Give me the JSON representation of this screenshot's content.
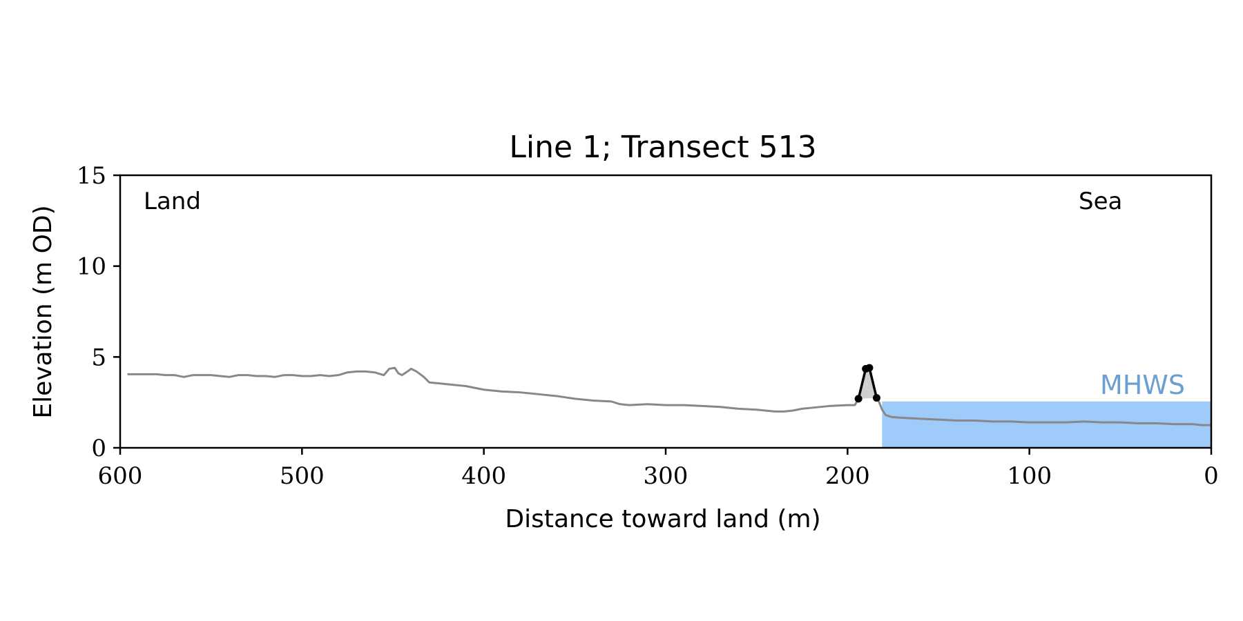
{
  "chart_data": {
    "type": "line",
    "title": "Line 1; Transect 513",
    "xlabel": "Distance toward land (m)",
    "ylabel": "Elevation (m OD)",
    "xlim": [
      600,
      0
    ],
    "ylim": [
      0,
      15
    ],
    "x_ticks": [
      600,
      500,
      400,
      300,
      200,
      100,
      0
    ],
    "y_ticks": [
      0,
      5,
      10,
      15
    ],
    "grid": false,
    "annotations": {
      "land": "Land",
      "sea": "Sea",
      "mhws": "MHWS"
    },
    "mhws": {
      "level": 2.55,
      "x_start": 181,
      "x_end": 0,
      "color": "#9ecbfa",
      "label_color": "#6a9fd4"
    },
    "profile": {
      "color": "#888888",
      "x": [
        596,
        590,
        585,
        580,
        575,
        570,
        565,
        560,
        555,
        550,
        545,
        540,
        535,
        530,
        525,
        520,
        515,
        510,
        505,
        500,
        495,
        490,
        485,
        480,
        475,
        470,
        465,
        460,
        455,
        452,
        449,
        447,
        445,
        442,
        440,
        437,
        433,
        430,
        420,
        410,
        400,
        390,
        380,
        370,
        360,
        350,
        340,
        330,
        325,
        320,
        310,
        300,
        290,
        280,
        270,
        260,
        250,
        240,
        235,
        230,
        225,
        220,
        210,
        200,
        196,
        194,
        190,
        185,
        183,
        181,
        179,
        176,
        170,
        160,
        150,
        140,
        130,
        120,
        110,
        100,
        90,
        80,
        70,
        60,
        50,
        40,
        30,
        20,
        10,
        5,
        0
      ],
      "y": [
        4.05,
        4.05,
        4.05,
        4.05,
        4.0,
        4.0,
        3.9,
        4.0,
        4.0,
        4.0,
        3.95,
        3.9,
        4.0,
        4.0,
        3.95,
        3.95,
        3.9,
        4.0,
        4.0,
        3.95,
        3.95,
        4.0,
        3.95,
        4.0,
        4.15,
        4.2,
        4.2,
        4.15,
        4.0,
        4.35,
        4.4,
        4.1,
        4.0,
        4.2,
        4.35,
        4.2,
        3.9,
        3.6,
        3.5,
        3.4,
        3.2,
        3.1,
        3.05,
        2.95,
        2.85,
        2.7,
        2.6,
        2.55,
        2.4,
        2.35,
        2.4,
        2.35,
        2.35,
        2.3,
        2.25,
        2.15,
        2.1,
        2.0,
        2.0,
        2.05,
        2.15,
        2.2,
        2.3,
        2.35,
        2.35,
        2.7,
        4.35,
        2.8,
        2.6,
        2.1,
        1.8,
        1.7,
        1.65,
        1.6,
        1.55,
        1.5,
        1.5,
        1.45,
        1.45,
        1.4,
        1.4,
        1.4,
        1.45,
        1.4,
        1.4,
        1.35,
        1.35,
        1.3,
        1.3,
        1.25,
        1.25
      ]
    },
    "dune": {
      "color": "#000000",
      "fill": "#cfcfcf",
      "x": [
        194,
        190,
        188,
        184
      ],
      "y": [
        2.7,
        4.35,
        4.4,
        2.75
      ]
    }
  }
}
